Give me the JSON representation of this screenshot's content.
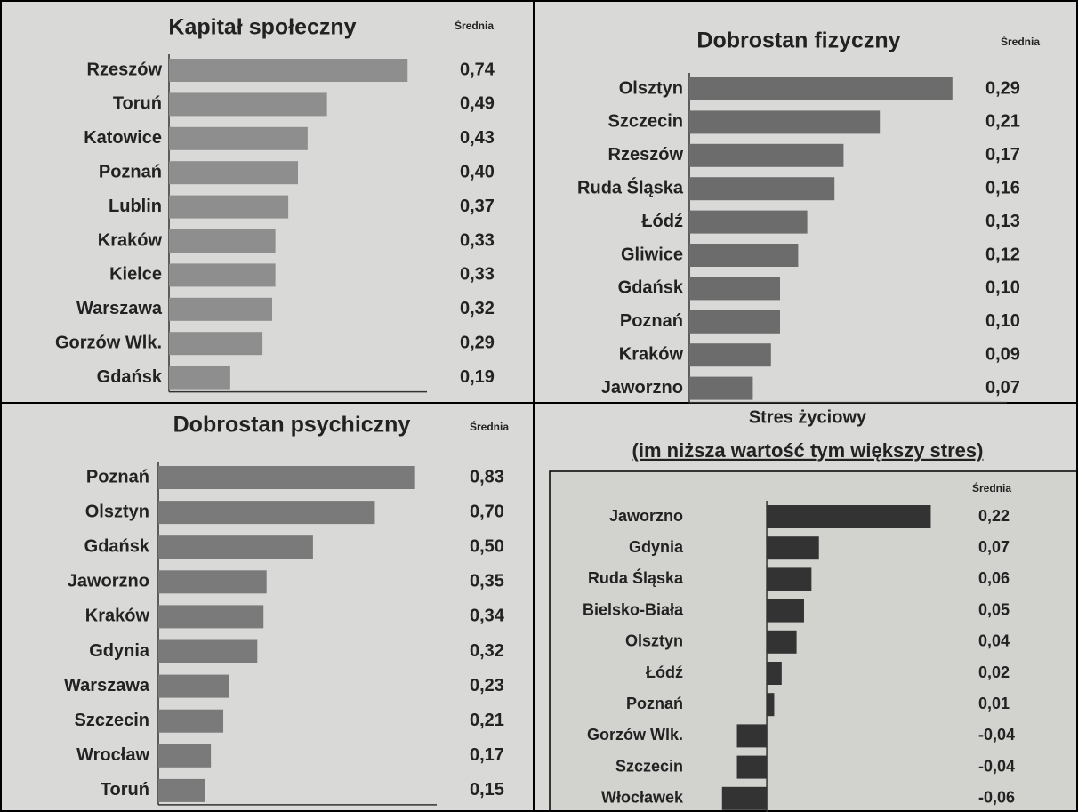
{
  "chart_data": [
    {
      "type": "bar",
      "orientation": "horizontal",
      "title": "Kapitał społeczny",
      "value_header": "Średnia",
      "categories": [
        "Rzeszów",
        "Toruń",
        "Katowice",
        "Poznań",
        "Lublin",
        "Kraków",
        "Kielce",
        "Warszawa",
        "Gorzów Wlk.",
        "Gdańsk"
      ],
      "values": [
        0.74,
        0.49,
        0.43,
        0.4,
        0.37,
        0.33,
        0.33,
        0.32,
        0.29,
        0.19
      ],
      "value_labels": [
        "0,74",
        "0,49",
        "0,43",
        "0,40",
        "0,37",
        "0,33",
        "0,33",
        "0,32",
        "0,29",
        "0,19"
      ],
      "color": "#8e8e8e",
      "xlim": [
        0,
        0.8
      ]
    },
    {
      "type": "bar",
      "orientation": "horizontal",
      "title": "Dobrostan fizyczny",
      "value_header": "Średnia",
      "categories": [
        "Olsztyn",
        "Szczecin",
        "Rzeszów",
        "Ruda Śląska",
        "Łódź",
        "Gliwice",
        "Gdańsk",
        "Poznań",
        "Kraków",
        "Jaworzno"
      ],
      "values": [
        0.29,
        0.21,
        0.17,
        0.16,
        0.13,
        0.12,
        0.1,
        0.1,
        0.09,
        0.07
      ],
      "value_labels": [
        "0,29",
        "0,21",
        "0,17",
        "0,16",
        "0,13",
        "0,12",
        "0,10",
        "0,10",
        "0,09",
        "0,07"
      ],
      "color": "#6c6c6c",
      "xlim": [
        0,
        0.35
      ]
    },
    {
      "type": "bar",
      "orientation": "horizontal",
      "title": "Dobrostan psychiczny",
      "value_header": "Średnia",
      "categories": [
        "Poznań",
        "Olsztyn",
        "Gdańsk",
        "Jaworzno",
        "Kraków",
        "Gdynia",
        "Warszawa",
        "Szczecin",
        "Wrocław",
        "Toruń"
      ],
      "values": [
        0.83,
        0.7,
        0.5,
        0.35,
        0.34,
        0.32,
        0.23,
        0.21,
        0.17,
        0.15
      ],
      "value_labels": [
        "0,83",
        "0,70",
        "0,50",
        "0,35",
        "0,34",
        "0,32",
        "0,23",
        "0,21",
        "0,17",
        "0,15"
      ],
      "color": "#7a7a7a",
      "xlim": [
        0,
        0.9
      ]
    },
    {
      "type": "bar",
      "orientation": "horizontal",
      "title": "Stres życiowy",
      "subtitle": "(im niższa wartość tym większy stres)",
      "value_header": "Średnia",
      "categories": [
        "Jaworzno",
        "Gdynia",
        "Ruda Śląska",
        "Bielsko-Biała",
        "Olsztyn",
        "Łódź",
        "Poznań",
        "Gorzów Wlk.",
        "Szczecin",
        "Włocławek"
      ],
      "values": [
        0.22,
        0.07,
        0.06,
        0.05,
        0.04,
        0.02,
        0.01,
        -0.04,
        -0.04,
        -0.06
      ],
      "value_labels": [
        "0,22",
        "0,07",
        "0,06",
        "0,05",
        "0,04",
        "0,02",
        "0,01",
        "-0,04",
        "-0,04",
        "-0,06"
      ],
      "color": "#333333",
      "xlim": [
        -0.08,
        0.26
      ]
    }
  ]
}
